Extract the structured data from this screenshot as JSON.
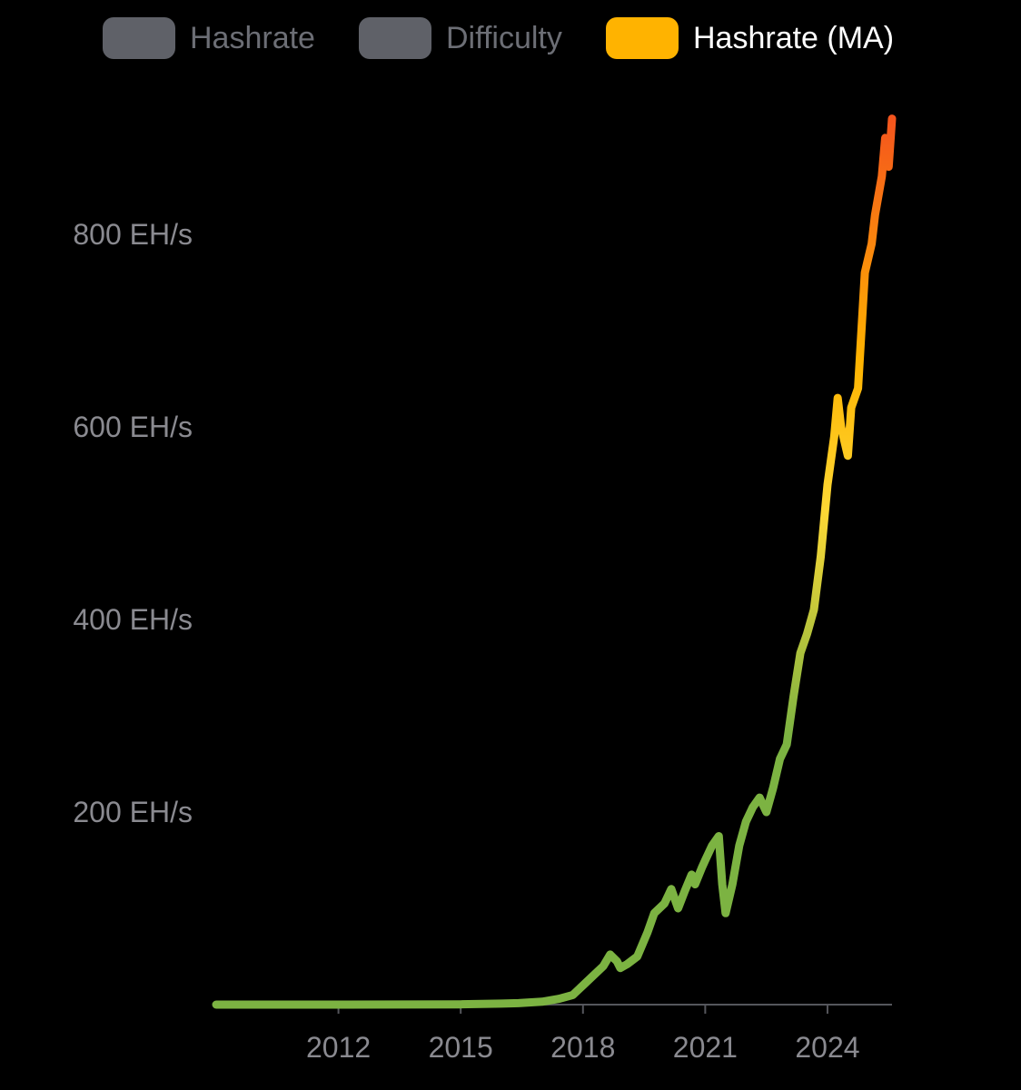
{
  "legend": {
    "items": [
      {
        "label": "Hashrate",
        "color": "#5f6168",
        "text_color": "#6c6e75",
        "active": false
      },
      {
        "label": "Difficulty",
        "color": "#5f6168",
        "text_color": "#6c6e75",
        "active": false
      },
      {
        "label": "Hashrate (MA)",
        "color": "#ffb300",
        "text_color": "#ffffff",
        "active": true
      }
    ]
  },
  "colors": {
    "background": "#000000",
    "axis": "#55565c",
    "tick_text": "#8a8a90",
    "gradient_low": "#7cb342",
    "gradient_mid": "#fdd835",
    "gradient_high_mid": "#ffb300",
    "gradient_high": "#f4511e"
  },
  "chart_data": {
    "type": "line",
    "title": "",
    "xlabel": "",
    "ylabel": "",
    "x_ticks": [
      "2012",
      "2015",
      "2018",
      "2021",
      "2024"
    ],
    "y_ticks": [
      "200 EH/s",
      "400 EH/s",
      "600 EH/s",
      "800 EH/s"
    ],
    "y_tick_values": [
      200,
      400,
      600,
      800
    ],
    "xlim": [
      "2009-01",
      "2025-08"
    ],
    "ylim": [
      0,
      930
    ],
    "grid": false,
    "legend_position": "top-center",
    "series": [
      {
        "name": "Hashrate (MA)",
        "color_scale": "value-gradient green-yellow-orange",
        "points": [
          [
            "2009-01",
            0
          ],
          [
            "2012-01",
            0
          ],
          [
            "2015-01",
            0.3
          ],
          [
            "2016-01",
            1
          ],
          [
            "2016-06",
            1.5
          ],
          [
            "2017-01",
            3
          ],
          [
            "2017-06",
            6
          ],
          [
            "2017-10",
            10
          ],
          [
            "2018-01",
            20
          ],
          [
            "2018-04",
            30
          ],
          [
            "2018-07",
            40
          ],
          [
            "2018-09",
            52
          ],
          [
            "2018-11",
            45
          ],
          [
            "2018-12",
            38
          ],
          [
            "2019-02",
            42
          ],
          [
            "2019-05",
            50
          ],
          [
            "2019-08",
            75
          ],
          [
            "2019-10",
            95
          ],
          [
            "2020-01",
            105
          ],
          [
            "2020-03",
            120
          ],
          [
            "2020-05",
            100
          ],
          [
            "2020-07",
            118
          ],
          [
            "2020-09",
            135
          ],
          [
            "2020-10",
            125
          ],
          [
            "2020-12",
            142
          ],
          [
            "2021-01",
            150
          ],
          [
            "2021-03",
            165
          ],
          [
            "2021-05",
            175
          ],
          [
            "2021-06",
            125
          ],
          [
            "2021-07",
            95
          ],
          [
            "2021-09",
            125
          ],
          [
            "2021-11",
            165
          ],
          [
            "2022-01",
            190
          ],
          [
            "2022-03",
            205
          ],
          [
            "2022-05",
            215
          ],
          [
            "2022-07",
            200
          ],
          [
            "2022-09",
            225
          ],
          [
            "2022-11",
            255
          ],
          [
            "2023-01",
            270
          ],
          [
            "2023-03",
            320
          ],
          [
            "2023-05",
            365
          ],
          [
            "2023-07",
            385
          ],
          [
            "2023-09",
            410
          ],
          [
            "2023-11",
            465
          ],
          [
            "2024-01",
            540
          ],
          [
            "2024-03",
            590
          ],
          [
            "2024-04",
            630
          ],
          [
            "2024-05",
            600
          ],
          [
            "2024-07",
            570
          ],
          [
            "2024-08",
            620
          ],
          [
            "2024-10",
            640
          ],
          [
            "2024-12",
            760
          ],
          [
            "2025-02",
            790
          ],
          [
            "2025-03",
            820
          ],
          [
            "2025-05",
            860
          ],
          [
            "2025-06",
            900
          ],
          [
            "2025-07",
            870
          ],
          [
            "2025-08",
            920
          ]
        ]
      }
    ]
  }
}
